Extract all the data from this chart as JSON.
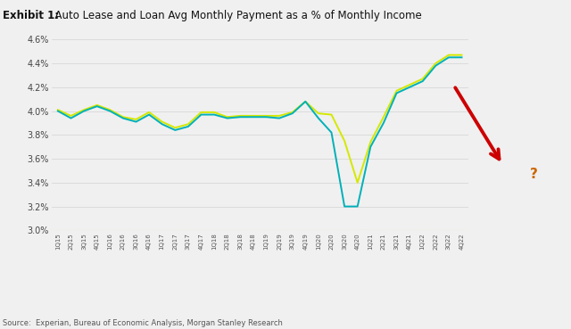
{
  "title_bold": "Exhibit 1:",
  "title_rest": "  Auto Lease and Loan Avg Monthly Payment as a % of Monthly Income",
  "source": "Source:  Experian, Bureau of Economic Analysis, Morgan Stanley Research",
  "ylim": [
    0.03,
    0.046
  ],
  "yticks": [
    0.03,
    0.032,
    0.034,
    0.036,
    0.038,
    0.04,
    0.042,
    0.044,
    0.046
  ],
  "xlabels": [
    "1Q15",
    "2Q15",
    "3Q15",
    "4Q15",
    "1Q16",
    "2Q16",
    "3Q16",
    "4Q16",
    "1Q17",
    "2Q17",
    "3Q17",
    "4Q17",
    "1Q18",
    "2Q18",
    "3Q18",
    "4Q18",
    "1Q19",
    "2Q19",
    "3Q19",
    "4Q19",
    "1Q20",
    "2Q20",
    "3Q20",
    "4Q20",
    "1Q21",
    "2Q21",
    "3Q21",
    "4Q21",
    "1Q22",
    "2Q22",
    "3Q22",
    "4Q22"
  ],
  "line_teal_color": "#00b0b8",
  "line_yellow_color": "#d4e800",
  "teal_values": [
    0.04,
    0.0394,
    0.04,
    0.0404,
    0.04,
    0.0394,
    0.0391,
    0.0397,
    0.0389,
    0.0384,
    0.0387,
    0.0397,
    0.0397,
    0.0394,
    0.0395,
    0.0395,
    0.0395,
    0.0394,
    0.0398,
    0.0408,
    0.0394,
    0.0382,
    0.032,
    0.032,
    0.037,
    0.039,
    0.0415,
    0.042,
    0.0425,
    0.0438,
    0.0445,
    0.0445
  ],
  "yellow_values": [
    0.0401,
    0.0396,
    0.0401,
    0.0405,
    0.0401,
    0.0395,
    0.0393,
    0.0399,
    0.0391,
    0.0386,
    0.0389,
    0.0399,
    0.0399,
    0.0395,
    0.0396,
    0.0396,
    0.0396,
    0.0396,
    0.0399,
    0.0408,
    0.0398,
    0.0397,
    0.0375,
    0.034,
    0.0374,
    0.0395,
    0.0417,
    0.0422,
    0.0427,
    0.044,
    0.0447,
    0.0447
  ],
  "background_color": "#f0f0f0",
  "arrow_color": "#cc0000",
  "question_color": "#cc6600",
  "grid_color": "#d8d8d8",
  "dotted_line_color": "#dddd00"
}
